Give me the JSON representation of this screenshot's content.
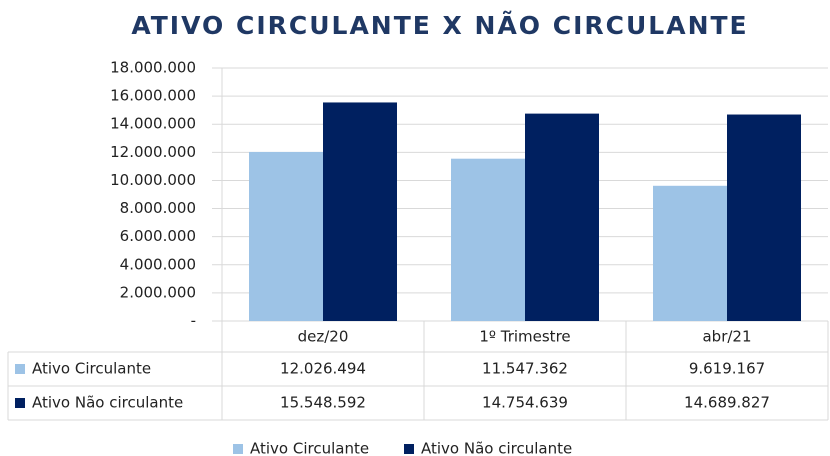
{
  "chart_data": {
    "type": "bar",
    "title": "ATIVO CIRCULANTE X NÃO CIRCULANTE",
    "categories": [
      "dez/20",
      "1º Trimestre",
      "abr/21"
    ],
    "series": [
      {
        "name": "Ativo Circulante",
        "color": "#9dc3e6",
        "values": [
          12026494,
          11547362,
          9619167
        ],
        "value_labels": [
          "12.026.494",
          "11.547.362",
          "9.619.167"
        ]
      },
      {
        "name": "Ativo Não circulante",
        "color": "#002060",
        "values": [
          15548592,
          14754639,
          14689827
        ],
        "value_labels": [
          "15.548.592",
          "14.754.639",
          "14.689.827"
        ]
      }
    ],
    "ylim": [
      0,
      18000000
    ],
    "yticks": [
      {
        "value": 0,
        "label": "-"
      },
      {
        "value": 2000000,
        "label": "2.000.000"
      },
      {
        "value": 4000000,
        "label": "4.000.000"
      },
      {
        "value": 6000000,
        "label": "6.000.000"
      },
      {
        "value": 8000000,
        "label": "8.000.000"
      },
      {
        "value": 10000000,
        "label": "10.000.000"
      },
      {
        "value": 12000000,
        "label": "12.000.000"
      },
      {
        "value": 14000000,
        "label": "14.000.000"
      },
      {
        "value": 16000000,
        "label": "16.000.000"
      },
      {
        "value": 18000000,
        "label": "18.000.000"
      }
    ],
    "grid": true,
    "legend": "bottom"
  }
}
